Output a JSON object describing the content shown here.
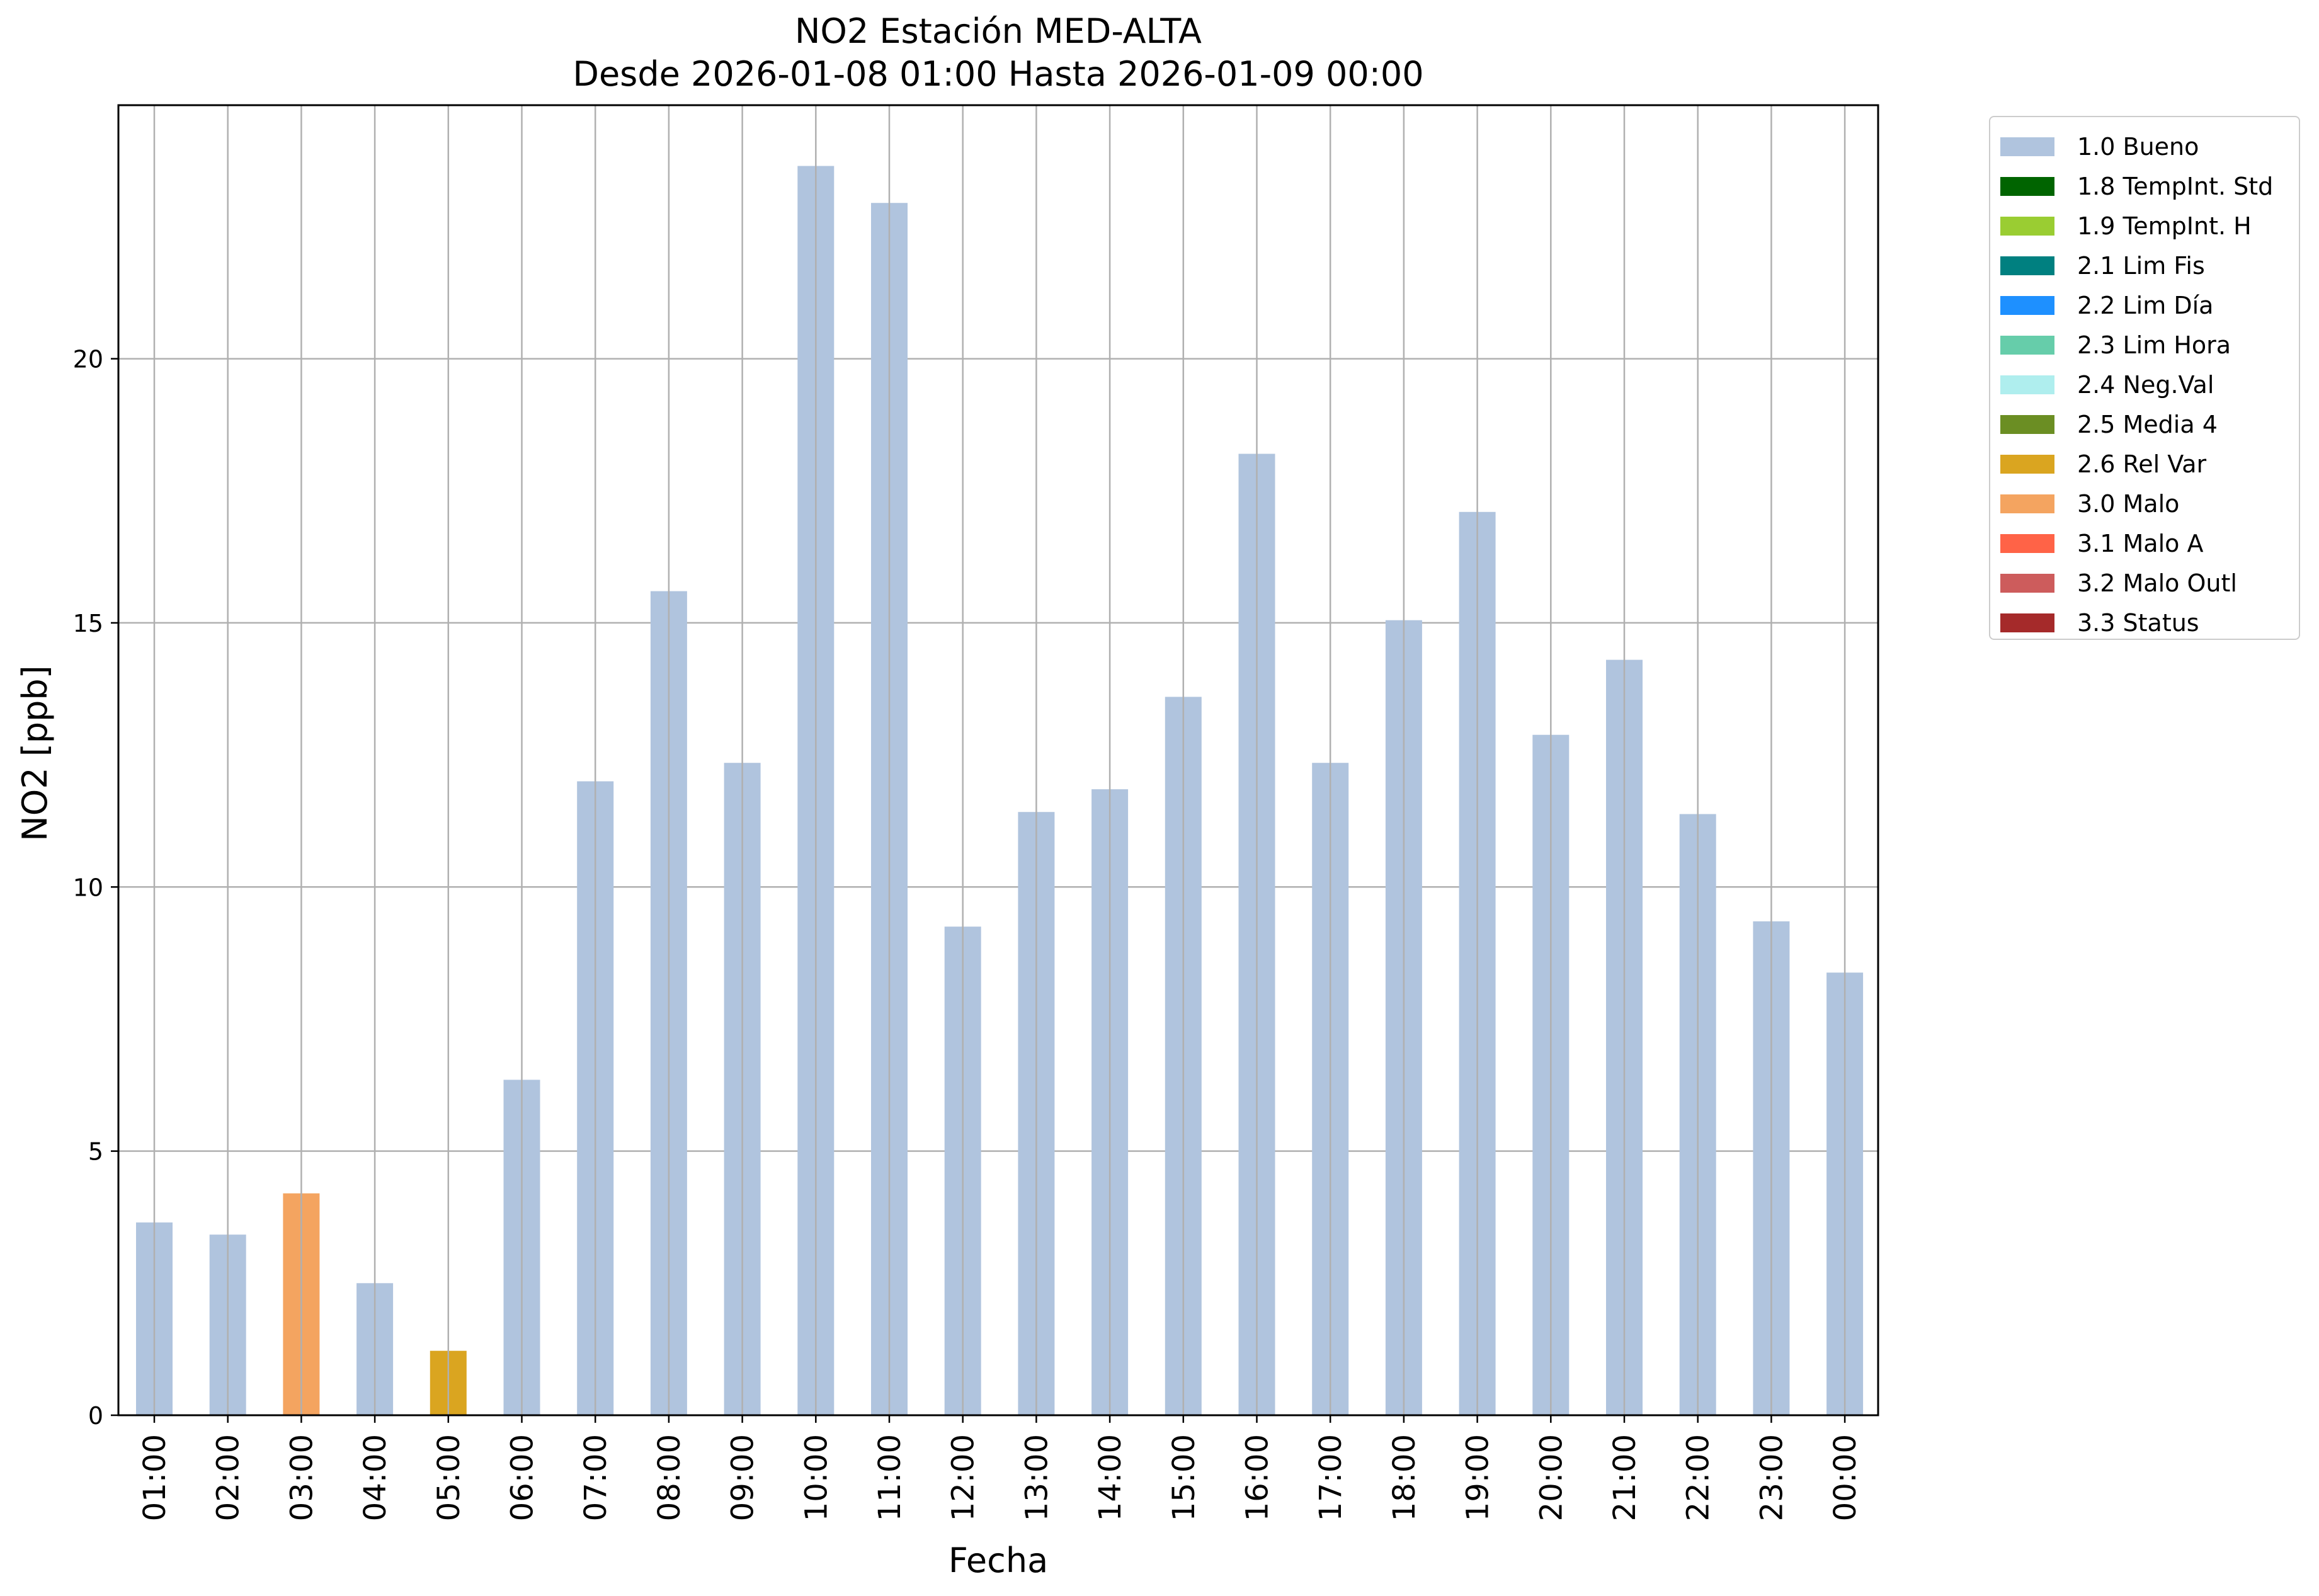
{
  "chart_data": {
    "type": "bar",
    "title": "NO2 Estación MED-ALTA",
    "subtitle": "Desde 2026-01-08 01:00 Hasta 2026-01-09 00:00",
    "xlabel": "Fecha",
    "ylabel": "NO2 [ppb]",
    "ylim": [
      0,
      24.8
    ],
    "yticks": [
      0,
      5,
      10,
      15,
      20
    ],
    "grid": true,
    "legend_position": "outside-right-top",
    "categories": [
      "01:00",
      "02:00",
      "03:00",
      "04:00",
      "05:00",
      "06:00",
      "07:00",
      "08:00",
      "09:00",
      "10:00",
      "11:00",
      "12:00",
      "13:00",
      "14:00",
      "15:00",
      "16:00",
      "17:00",
      "18:00",
      "19:00",
      "20:00",
      "21:00",
      "22:00",
      "23:00",
      "00:00"
    ],
    "values": [
      3.65,
      3.42,
      4.2,
      2.5,
      1.22,
      6.35,
      12.0,
      15.6,
      12.35,
      23.65,
      22.95,
      9.25,
      11.42,
      11.85,
      13.6,
      18.2,
      12.35,
      15.05,
      17.1,
      12.88,
      14.3,
      11.38,
      9.35,
      8.38
    ],
    "flags": [
      "1.0 Bueno",
      "1.0 Bueno",
      "3.0 Malo",
      "1.0 Bueno",
      "2.6 Rel Var",
      "1.0 Bueno",
      "1.0 Bueno",
      "1.0 Bueno",
      "1.0 Bueno",
      "1.0 Bueno",
      "1.0 Bueno",
      "1.0 Bueno",
      "1.0 Bueno",
      "1.0 Bueno",
      "1.0 Bueno",
      "1.0 Bueno",
      "1.0 Bueno",
      "1.0 Bueno",
      "1.0 Bueno",
      "1.0 Bueno",
      "1.0 Bueno",
      "1.0 Bueno",
      "1.0 Bueno",
      "1.0 Bueno"
    ],
    "legend": [
      {
        "label": "1.0 Bueno",
        "color": "#b0c4de"
      },
      {
        "label": "1.8 TempInt. Std",
        "color": "#006400"
      },
      {
        "label": "1.9 TempInt. H",
        "color": "#9acd32"
      },
      {
        "label": "2.1 Lim Fis",
        "color": "#008080"
      },
      {
        "label": "2.2 Lim Día",
        "color": "#1e90ff"
      },
      {
        "label": "2.3 Lim Hora",
        "color": "#66cdaa"
      },
      {
        "label": "2.4 Neg.Val",
        "color": "#afeeee"
      },
      {
        "label": "2.5 Media 4",
        "color": "#6b8e23"
      },
      {
        "label": "2.6 Rel Var",
        "color": "#daa520"
      },
      {
        "label": "3.0 Malo",
        "color": "#f4a460"
      },
      {
        "label": "3.1 Malo A",
        "color": "#ff6347"
      },
      {
        "label": "3.2 Malo Outl",
        "color": "#cd5c5c"
      },
      {
        "label": "3.3 Status",
        "color": "#a52a2a"
      }
    ],
    "colors": {
      "grid": "#b0b0b0",
      "axis": "#000000"
    }
  }
}
